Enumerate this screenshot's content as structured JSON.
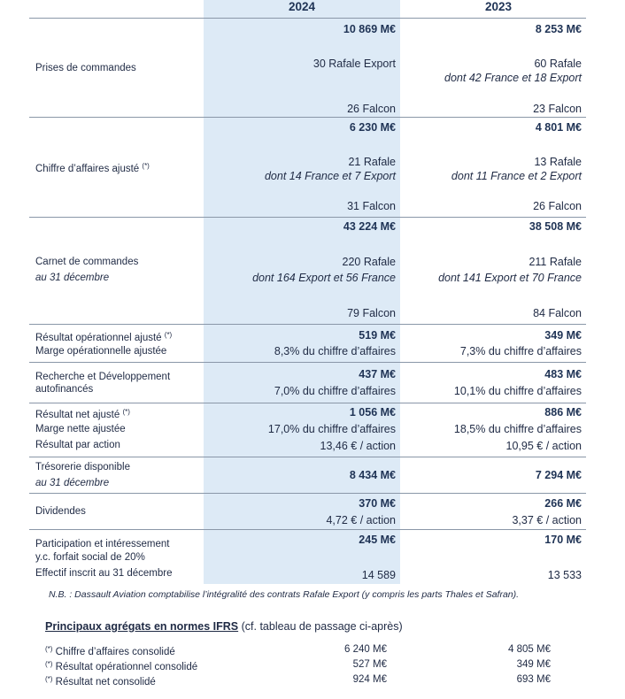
{
  "table": {
    "columns": [
      "2024",
      "2023"
    ],
    "rows": [
      {
        "label": [
          "Prises de commandes"
        ],
        "values": [
          [
            "10 869 M€",
            "30 Rafale Export",
            "26 Falcon"
          ],
          [
            "8 253 M€",
            "60 Rafale",
            "dont 42 France et 18 Export",
            "23 Falcon"
          ]
        ]
      },
      {
        "label": [
          "Chiffre d’affaires ajusté"
        ],
        "note": "(*)",
        "values": [
          [
            "6 230 M€",
            "21 Rafale",
            "dont 14 France et 7 Export",
            "31 Falcon"
          ],
          [
            "4 801 M€",
            "13 Rafale",
            "dont 11 France et 2 Export",
            "26 Falcon"
          ]
        ]
      },
      {
        "label": [
          "Carnet de commandes",
          "au 31 décembre"
        ],
        "values": [
          [
            "43 224 M€",
            "220 Rafale",
            "dont 164 Export et 56 France",
            "79 Falcon"
          ],
          [
            "38 508 M€",
            "211 Rafale",
            "dont 141 Export et 70 France",
            "84 Falcon"
          ]
        ]
      },
      {
        "label": [
          "Résultat opérationnel ajusté",
          "Marge opérationnelle ajustée"
        ],
        "note": "(*)",
        "values": [
          [
            "519 M€",
            "8,3% du chiffre d’affaires"
          ],
          [
            "349 M€",
            "7,3% du chiffre d’affaires"
          ]
        ]
      },
      {
        "label": [
          "Recherche et Développement",
          "autofinancés"
        ],
        "values": [
          [
            "437 M€",
            "7,0% du chiffre d’affaires"
          ],
          [
            "483 M€",
            "10,1% du chiffre d’affaires"
          ]
        ]
      },
      {
        "label": [
          "Résultat net ajusté",
          "Marge nette ajustée",
          "Résultat par action"
        ],
        "note": "(*)",
        "values": [
          [
            "1 056 M€",
            "17,0% du chiffre d’affaires",
            "13,46 € / action"
          ],
          [
            "886 M€",
            "18,5% du chiffre d’affaires",
            "10,95 € / action"
          ]
        ]
      },
      {
        "label": [
          "Trésorerie disponible",
          "au 31 décembre"
        ],
        "values": [
          [
            "8 434 M€"
          ],
          [
            "7 294 M€"
          ]
        ]
      },
      {
        "label": [
          "Dividendes"
        ],
        "values": [
          [
            "370 M€",
            "4,72 € / action"
          ],
          [
            "266 M€",
            "3,37 € / action"
          ]
        ]
      },
      {
        "label": [
          "Participation et intéressement",
          "y.c. forfait social de 20%",
          "Effectif inscrit au 31 décembre"
        ],
        "values": [
          [
            "245 M€",
            "14 589"
          ],
          [
            "170 M€",
            "13 533"
          ]
        ]
      }
    ]
  },
  "footnote": "N.B. : Dassault Aviation comptabilise l’intégralité des contrats Rafale Export (y compris les parts Thales et Safran).",
  "ifrs": {
    "title": "Principaux agrégats en normes IFRS",
    "subtitle": "(cf. tableau de passage ci-après)",
    "marker": "(*)",
    "rows": [
      {
        "label": "Chiffre d’affaires consolidé",
        "values": [
          "6 240 M€",
          "4 805 M€"
        ]
      },
      {
        "label": "Résultat opérationnel consolidé",
        "values": [
          "527 M€",
          "349 M€"
        ]
      },
      {
        "label": "Résultat net consolidé",
        "values": [
          "924 M€",
          "693 M€"
        ]
      }
    ]
  }
}
